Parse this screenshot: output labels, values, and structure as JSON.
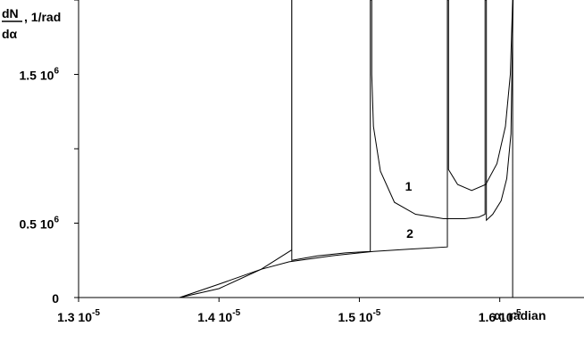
{
  "chart_data": {
    "type": "line",
    "ylabel": {
      "numerator": "dN",
      "denominator": "dα",
      "unit": ", 1/rad"
    },
    "xlabel": "α, radian",
    "x_ticks": [
      {
        "value": 1.3e-05,
        "mantissa": "1.3 10",
        "exp": "-5"
      },
      {
        "value": 1.4e-05,
        "mantissa": "1.4 10",
        "exp": "-5"
      },
      {
        "value": 1.5e-05,
        "mantissa": "1.5 10",
        "exp": "-5"
      },
      {
        "value": 1.6e-05,
        "mantissa": "1.6 10",
        "exp": "-5"
      }
    ],
    "y_ticks": [
      {
        "value": 0,
        "mantissa": "0",
        "exp": ""
      },
      {
        "value": 500000,
        "mantissa": "0.5 10",
        "exp": "6"
      },
      {
        "value": 1500000,
        "mantissa": "1.5 10",
        "exp": "6"
      }
    ],
    "xlim": [
      1.3e-05,
      1.66e-05
    ],
    "ylim": [
      0,
      2000000
    ],
    "grid": false,
    "series": [
      {
        "name": "1",
        "points": [
          [
            1.372e-05,
            0
          ],
          [
            1.4e-05,
            60000
          ],
          [
            1.43e-05,
            190000
          ],
          [
            1.4518e-05,
            320000
          ],
          [
            1.4518e-05,
            2000000
          ],
          [
            1.4519e-05,
            2000000
          ],
          [
            1.4519e-05,
            250000
          ],
          [
            1.47e-05,
            280000
          ],
          [
            1.49e-05,
            300000
          ],
          [
            1.5078e-05,
            310000
          ],
          [
            1.5078e-05,
            2000000
          ],
          [
            1.5088e-05,
            2000000
          ],
          [
            1.5088e-05,
            1500000
          ],
          [
            1.51e-05,
            1150000
          ],
          [
            1.515e-05,
            850000
          ],
          [
            1.525e-05,
            640000
          ],
          [
            1.54e-05,
            560000
          ],
          [
            1.56e-05,
            530000
          ],
          [
            1.575e-05,
            530000
          ],
          [
            1.585e-05,
            540000
          ],
          [
            1.5895e-05,
            560000
          ],
          [
            1.5895e-05,
            2000000
          ],
          [
            1.5905e-05,
            2000000
          ],
          [
            1.5905e-05,
            520000
          ],
          [
            1.595e-05,
            560000
          ],
          [
            1.601e-05,
            650000
          ],
          [
            1.605e-05,
            800000
          ],
          [
            1.608e-05,
            1100000
          ],
          [
            1.6095e-05,
            2000000
          ]
        ]
      },
      {
        "name": "2",
        "points": [
          [
            1.372e-05,
            0
          ],
          [
            1.4e-05,
            90000
          ],
          [
            1.43e-05,
            190000
          ],
          [
            1.45e-05,
            240000
          ],
          [
            1.48e-05,
            280000
          ],
          [
            1.51e-05,
            310000
          ],
          [
            1.535e-05,
            325000
          ],
          [
            1.5627e-05,
            340000
          ],
          [
            1.5627e-05,
            2000000
          ],
          [
            1.5635e-05,
            2000000
          ],
          [
            1.5635e-05,
            860000
          ],
          [
            1.57e-05,
            760000
          ],
          [
            1.58e-05,
            720000
          ],
          [
            1.59e-05,
            760000
          ],
          [
            1.598e-05,
            900000
          ],
          [
            1.604e-05,
            1150000
          ],
          [
            1.6075e-05,
            1500000
          ],
          [
            1.6092e-05,
            2000000
          ],
          [
            1.6092e-05,
            0
          ]
        ]
      }
    ],
    "annotations": [
      {
        "text": "1",
        "x": 1.535e-05,
        "y": 720000
      },
      {
        "text": "2",
        "x": 1.536e-05,
        "y": 400000
      }
    ]
  }
}
